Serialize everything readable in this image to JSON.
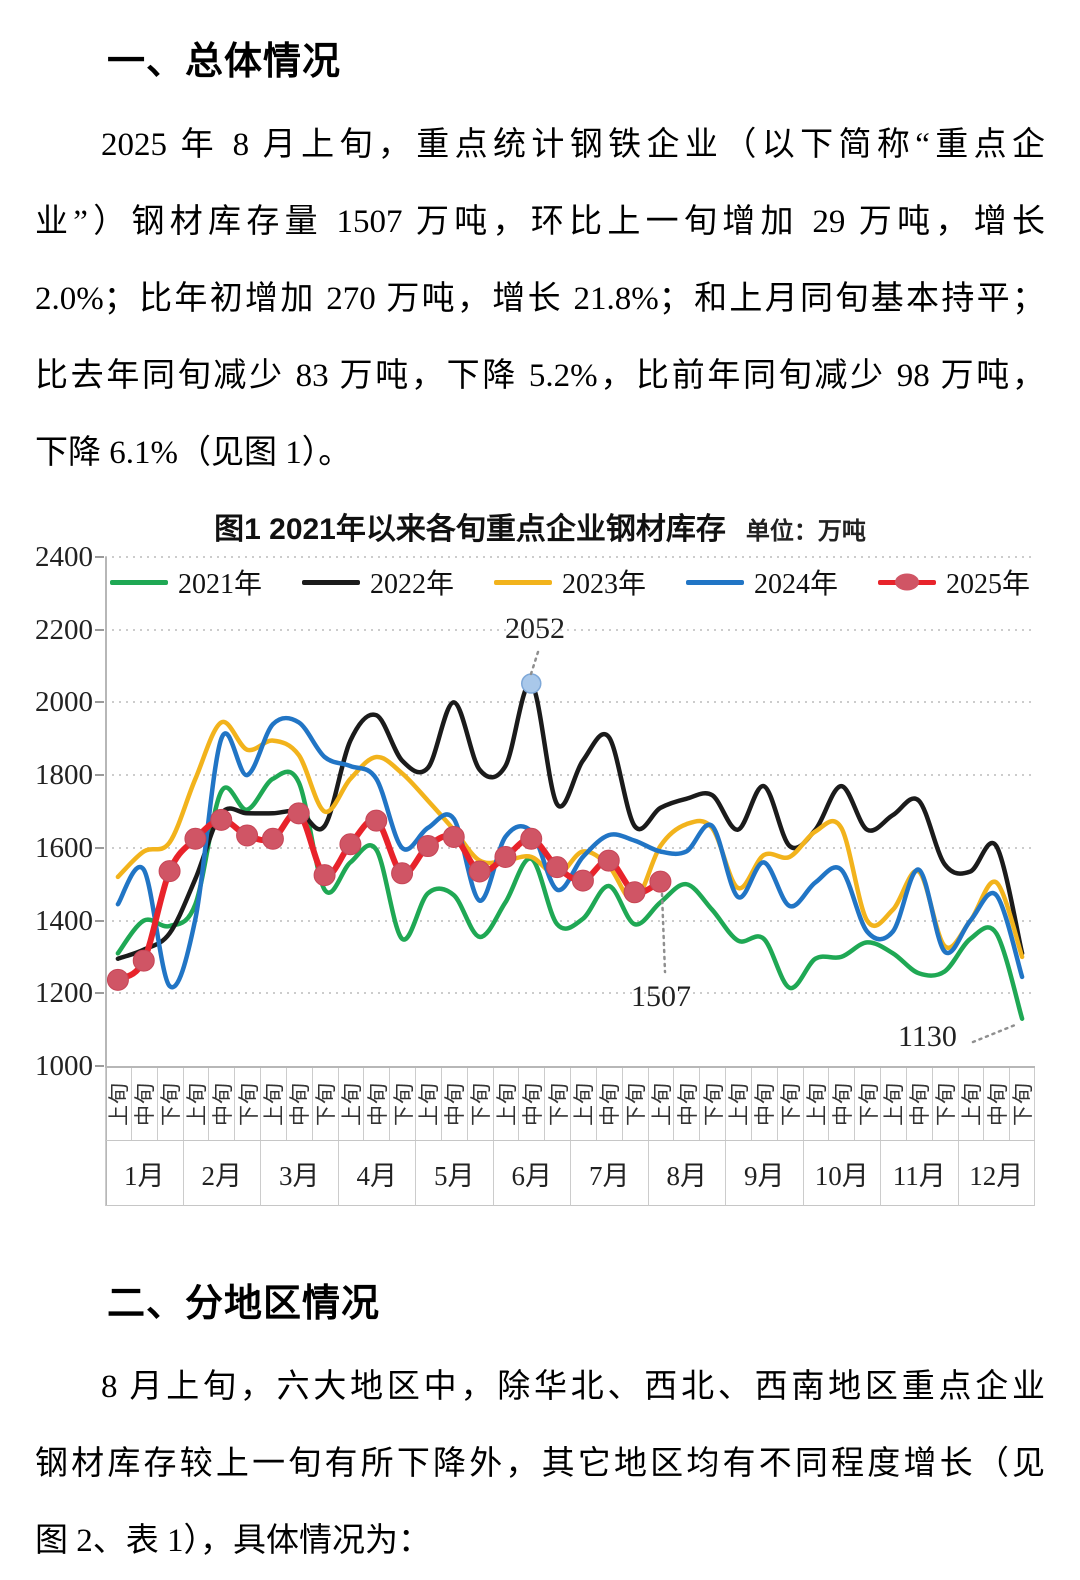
{
  "page": {
    "section1": {
      "heading": "一、总体情况",
      "paragraph_lines": [
        "2025 年 8 月上旬，重点统计钢铁企业（以下简称“重点企",
        "业”）钢材库存量 1507 万吨，环比上一旬增加 29 万吨，增长",
        "2.0%；比年初增加 270 万吨，增长 21.8%；和上月同旬基本持平；",
        "比去年同旬减少 83 万吨，下降 5.2%，比前年同旬减少 98 万吨，",
        "下降 6.1%（见图 1）。"
      ]
    },
    "section2": {
      "heading": "二、分地区情况",
      "paragraph_lines": [
        "8 月上旬，六大地区中，除华北、西北、西南地区重点企业",
        "钢材库存较上一旬有所下降外，其它地区均有不同程度增长（见",
        "图 2、表 1），具体情况为："
      ]
    }
  },
  "chart_data": {
    "type": "line",
    "title": "图1  2021年以来各旬重点企业钢材库存",
    "unit_label": "单位：万吨",
    "ylabel": "",
    "xlabel": "",
    "ylim": [
      1000,
      2400
    ],
    "ytick_step": 200,
    "grid": "horizontal-dotted",
    "legend_position": "top",
    "months": [
      "1月",
      "2月",
      "3月",
      "4月",
      "5月",
      "6月",
      "7月",
      "8月",
      "9月",
      "10月",
      "11月",
      "12月"
    ],
    "periods": [
      "上旬",
      "中旬",
      "下旬"
    ],
    "series": [
      {
        "name": "2021年",
        "color": "#1fa854",
        "marker": false,
        "values": [
          1310,
          1400,
          1385,
          1445,
          1755,
          1705,
          1790,
          1780,
          1485,
          1560,
          1595,
          1350,
          1475,
          1470,
          1355,
          1450,
          1570,
          1390,
          1405,
          1495,
          1390,
          1450,
          1500,
          1430,
          1345,
          1350,
          1215,
          1295,
          1300,
          1340,
          1310,
          1255,
          1260,
          1350,
          1365,
          1130
        ]
      },
      {
        "name": "2022年",
        "color": "#1b1b1b",
        "marker": false,
        "values": [
          1295,
          1320,
          1365,
          1515,
          1695,
          1695,
          1695,
          1700,
          1660,
          1895,
          1965,
          1840,
          1820,
          2000,
          1815,
          1825,
          2052,
          1720,
          1840,
          1905,
          1660,
          1710,
          1735,
          1745,
          1650,
          1770,
          1605,
          1650,
          1770,
          1650,
          1690,
          1730,
          1555,
          1535,
          1605,
          1310
        ]
      },
      {
        "name": "2023年",
        "color": "#f2b31c",
        "marker": false,
        "values": [
          1520,
          1590,
          1615,
          1790,
          1945,
          1870,
          1895,
          1855,
          1700,
          1790,
          1850,
          1805,
          1730,
          1650,
          1565,
          1565,
          1575,
          1525,
          1590,
          1550,
          1455,
          1605,
          1665,
          1655,
          1490,
          1580,
          1575,
          1645,
          1655,
          1400,
          1430,
          1535,
          1330,
          1400,
          1505,
          1300
        ]
      },
      {
        "name": "2024年",
        "color": "#2175c5",
        "marker": false,
        "values": [
          1445,
          1540,
          1220,
          1405,
          1900,
          1800,
          1940,
          1945,
          1850,
          1825,
          1790,
          1600,
          1655,
          1680,
          1455,
          1630,
          1645,
          1485,
          1575,
          1635,
          1620,
          1590,
          1590,
          1660,
          1465,
          1560,
          1440,
          1505,
          1540,
          1370,
          1370,
          1540,
          1315,
          1400,
          1470,
          1245
        ]
      },
      {
        "name": "2025年",
        "color": "#e8232b",
        "marker": true,
        "marker_color": "#d05565",
        "values": [
          1237,
          1290,
          1536,
          1625,
          1677,
          1634,
          1625,
          1695,
          1525,
          1610,
          1675,
          1530,
          1605,
          1630,
          1535,
          1575,
          1625,
          1547,
          1510,
          1565,
          1478,
          1507
        ]
      }
    ],
    "annotations": [
      {
        "text": "2052",
        "series": "2022年",
        "index": 16,
        "point_marker_color": "#a9c8ea"
      },
      {
        "text": "1507",
        "series": "2025年",
        "index": 21
      },
      {
        "text": "1130",
        "series": "2021年",
        "index": 35
      }
    ]
  }
}
